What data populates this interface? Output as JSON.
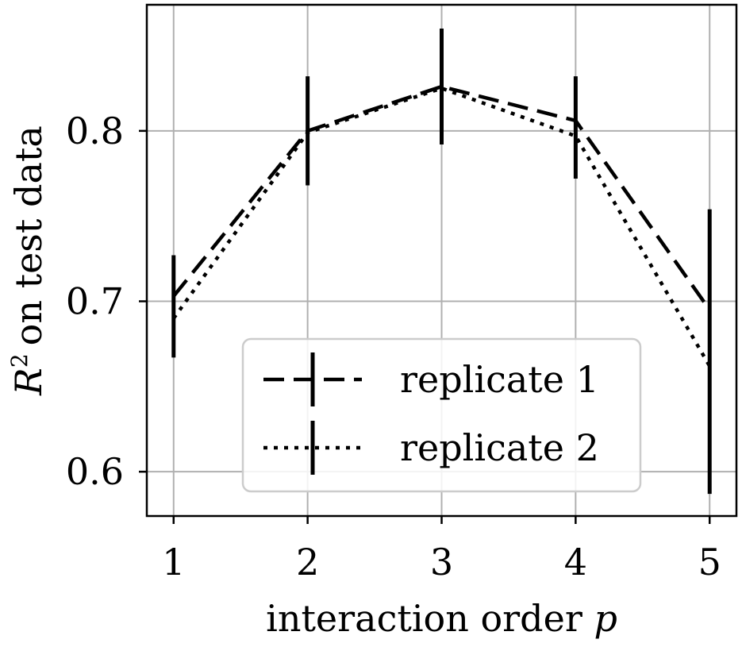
{
  "chart_data": {
    "type": "line",
    "x": [
      1,
      2,
      3,
      4,
      5
    ],
    "xticks": [
      "1",
      "2",
      "3",
      "4",
      "5"
    ],
    "yticks": [
      0.6,
      0.7,
      0.8
    ],
    "ytick_labels": [
      "0.6",
      "0.7",
      "0.8"
    ],
    "xlabel_text": "interaction order ",
    "xlabel_var": "p",
    "ylabel_text": "on test data",
    "ylabel_var": "R",
    "ylabel_sup": "2",
    "xlim": [
      0.8,
      5.2
    ],
    "ylim": [
      0.574,
      0.874
    ],
    "grid": true,
    "legend_position": "lower-center",
    "series": [
      {
        "name": "replicate 1",
        "style": "dashed",
        "color": "#000000",
        "values": [
          0.703,
          0.8,
          0.826,
          0.806,
          0.695
        ],
        "err_low": [
          0.667,
          0.768,
          0.792,
          0.772,
          0.587
        ],
        "err_high": [
          0.727,
          0.832,
          0.86,
          0.832,
          0.754
        ]
      },
      {
        "name": "replicate 2",
        "style": "dotted",
        "color": "#000000",
        "values": [
          0.69,
          0.799,
          0.825,
          0.797,
          0.662
        ]
      }
    ]
  }
}
